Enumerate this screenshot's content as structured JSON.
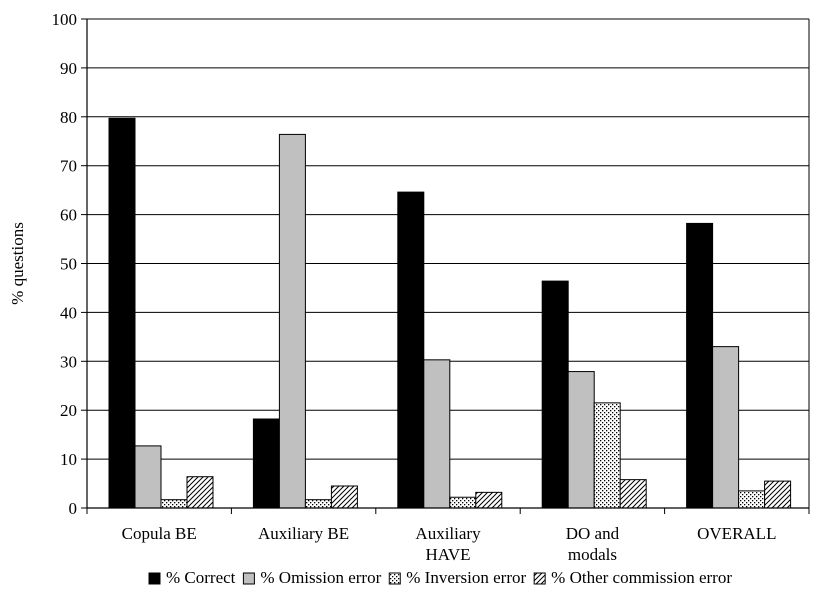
{
  "chart_data": {
    "type": "bar",
    "categories": [
      [
        "Copula BE"
      ],
      [
        "Auxiliary BE"
      ],
      [
        "Auxiliary",
        "HAVE"
      ],
      [
        "DO and",
        "modals"
      ],
      [
        "OVERALL"
      ]
    ],
    "series": [
      {
        "name": "% Correct",
        "values": [
          79.7,
          18.2,
          64.6,
          46.4,
          58.2
        ],
        "color": "#000000",
        "pattern": "solid"
      },
      {
        "name": "% Omission error",
        "values": [
          12.7,
          76.4,
          30.3,
          27.9,
          33.0
        ],
        "color": "#c0c0c0",
        "pattern": "solid"
      },
      {
        "name": "% Inversion error",
        "values": [
          1.7,
          1.7,
          2.2,
          21.5,
          3.5
        ],
        "color": "#ffffff",
        "pattern": "dots"
      },
      {
        "name": "% Other commission error",
        "values": [
          6.4,
          4.5,
          3.2,
          5.8,
          5.5
        ],
        "color": "#ffffff",
        "pattern": "diagonal"
      }
    ],
    "title": "",
    "xlabel": "",
    "ylabel": "% questions",
    "ylim": [
      0,
      100
    ],
    "yticks": [
      "0",
      "10",
      "20",
      "30",
      "40",
      "50",
      "60",
      "70",
      "80",
      "90",
      "100"
    ],
    "grid": true,
    "legend_position": "bottom"
  }
}
